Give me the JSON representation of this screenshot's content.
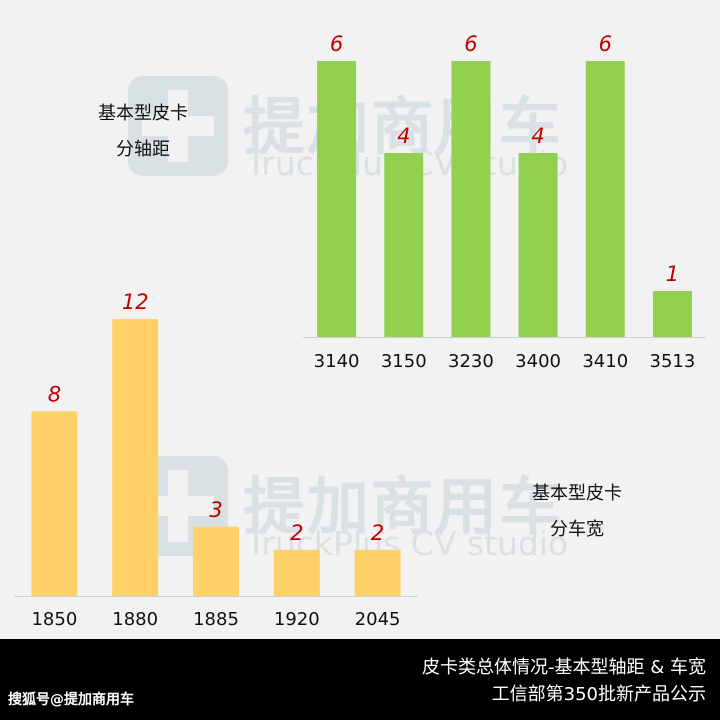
{
  "watermark": {
    "cn": "提加商用车",
    "en": "TruckPlus CV studio"
  },
  "chart_data": [
    {
      "type": "bar",
      "title": "基本型皮卡分轴距",
      "title_lines": [
        "基本型皮卡",
        "分轴距"
      ],
      "categories": [
        "3140",
        "3150",
        "3230",
        "3400",
        "3410",
        "3513"
      ],
      "values": [
        6,
        4,
        6,
        4,
        6,
        1
      ],
      "ylim": [
        0,
        6
      ],
      "bar_color": "#92d050",
      "label_color": "#c00000",
      "grid": false,
      "legend": "none"
    },
    {
      "type": "bar",
      "title": "基本型皮卡分车宽",
      "title_lines": [
        "基本型皮卡",
        "分车宽"
      ],
      "categories": [
        "1850",
        "1880",
        "1885",
        "1920",
        "2045"
      ],
      "values": [
        8,
        12,
        3,
        2,
        2
      ],
      "ylim": [
        0,
        12
      ],
      "bar_color": "#ffd166",
      "label_color": "#c00000",
      "grid": false,
      "legend": "none"
    }
  ],
  "footer": {
    "line1": "皮卡类总体情况-基本型轴距 & 车宽",
    "line2": "工信部第350批新产品公示",
    "source": "搜狐号@提加商用车"
  }
}
